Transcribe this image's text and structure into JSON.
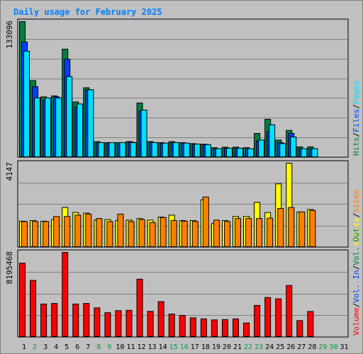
{
  "title": "Daily usage for February 2025",
  "colors": {
    "hits": "#008040",
    "files": "#0040ff",
    "pages": "#00e0ff",
    "visits": "#ffff00",
    "sites": "#ff8000",
    "kbytes": "#ff0000",
    "weekday_label": "#000000",
    "weekend_label": "#00a040"
  },
  "chart_data": [
    {
      "type": "bar",
      "title": "Daily usage for February 2025",
      "ylabel_max": "133096",
      "ylim": [
        0,
        133096
      ],
      "categories": [
        "1",
        "2",
        "3",
        "4",
        "5",
        "6",
        "7",
        "8",
        "9",
        "10",
        "11",
        "12",
        "13",
        "14",
        "15",
        "16",
        "17",
        "18",
        "19",
        "20",
        "21",
        "22",
        "23",
        "24",
        "25",
        "26",
        "27",
        "28",
        "29",
        "30",
        "31"
      ],
      "legend": [
        {
          "label": "Hits",
          "color": "#008040"
        },
        {
          "label": "Files",
          "color": "#0040ff"
        },
        {
          "label": "Pages",
          "color": "#00e0ff"
        }
      ],
      "series": [
        {
          "name": "Hits",
          "values": [
            133096,
            75000,
            59000,
            60000,
            106000,
            54000,
            68000,
            15000,
            14000,
            14000,
            15000,
            53000,
            15000,
            14000,
            15000,
            14000,
            13000,
            12500,
            9000,
            9500,
            9500,
            9000,
            23000,
            37000,
            16500,
            26000,
            9800,
            9800,
            null,
            null,
            null
          ]
        },
        {
          "name": "Files",
          "values": [
            113000,
            69000,
            56000,
            59000,
            96000,
            49000,
            66000,
            13500,
            13000,
            12500,
            14500,
            45000,
            14000,
            13500,
            14000,
            13500,
            12500,
            12000,
            7500,
            8500,
            8500,
            8000,
            15500,
            25000,
            14000,
            23000,
            8000,
            8000,
            null,
            null,
            null
          ]
        },
        {
          "name": "Pages",
          "values": [
            104000,
            58000,
            58000,
            58000,
            79000,
            52000,
            66000,
            14000,
            14000,
            14000,
            14000,
            46000,
            14000,
            13500,
            14000,
            13500,
            12500,
            12000,
            8000,
            8500,
            8500,
            8000,
            16500,
            31500,
            13000,
            19500,
            8000,
            8000,
            null,
            null,
            null
          ]
        }
      ]
    },
    {
      "type": "bar",
      "ylabel_max": "4147",
      "ylim": [
        0,
        4147
      ],
      "categories": [
        "1",
        "2",
        "3",
        "4",
        "5",
        "6",
        "7",
        "8",
        "9",
        "10",
        "11",
        "12",
        "13",
        "14",
        "15",
        "16",
        "17",
        "18",
        "19",
        "20",
        "21",
        "22",
        "23",
        "24",
        "25",
        "26",
        "27",
        "28",
        "29",
        "30",
        "31"
      ],
      "legend": [
        {
          "label": "Visits",
          "color": "#ffff00"
        },
        {
          "label": "Sites",
          "color": "#ff8000"
        }
      ],
      "series": [
        {
          "name": "Visits",
          "values": [
            1270,
            1300,
            1270,
            1350,
            1950,
            1700,
            1670,
            1320,
            1350,
            1300,
            1320,
            1400,
            1320,
            1470,
            1570,
            1300,
            1300,
            2330,
            1150,
            1300,
            1500,
            1500,
            2200,
            1700,
            3120,
            4147,
            1720,
            1850,
            null,
            null,
            null
          ]
        },
        {
          "name": "Sites",
          "values": [
            1250,
            1250,
            1250,
            1500,
            1500,
            1570,
            1620,
            1400,
            1250,
            1620,
            1250,
            1350,
            1200,
            1450,
            1300,
            1270,
            1250,
            2470,
            1320,
            1250,
            1400,
            1400,
            1400,
            1420,
            1900,
            1950,
            1730,
            1800,
            null,
            null,
            null
          ]
        }
      ]
    },
    {
      "type": "bar",
      "ylabel_max": "8195468",
      "ylim": [
        0,
        8195468
      ],
      "categories": [
        "1",
        "2",
        "3",
        "4",
        "5",
        "6",
        "7",
        "8",
        "9",
        "10",
        "11",
        "12",
        "13",
        "14",
        "15",
        "16",
        "17",
        "18",
        "19",
        "20",
        "21",
        "22",
        "23",
        "24",
        "25",
        "26",
        "27",
        "28",
        "29",
        "30",
        "31"
      ],
      "legend": [
        {
          "label": "Volume",
          "color": "#ff0000"
        },
        {
          "label": "Vol. In",
          "color": "#0040ff"
        },
        {
          "label": "Vol. Out",
          "color": "#008040"
        }
      ],
      "series": [
        {
          "name": "Volume",
          "values": [
            7150000,
            5470000,
            3170000,
            3230000,
            8195468,
            3170000,
            3230000,
            2800000,
            2330000,
            2530000,
            2560000,
            5590000,
            2460000,
            3410000,
            2200000,
            2060000,
            1830000,
            1730000,
            1630000,
            1660000,
            1730000,
            1330000,
            3040000,
            3810000,
            3680000,
            4980000,
            1560000,
            2450000,
            null,
            null,
            null
          ]
        }
      ]
    }
  ]
}
